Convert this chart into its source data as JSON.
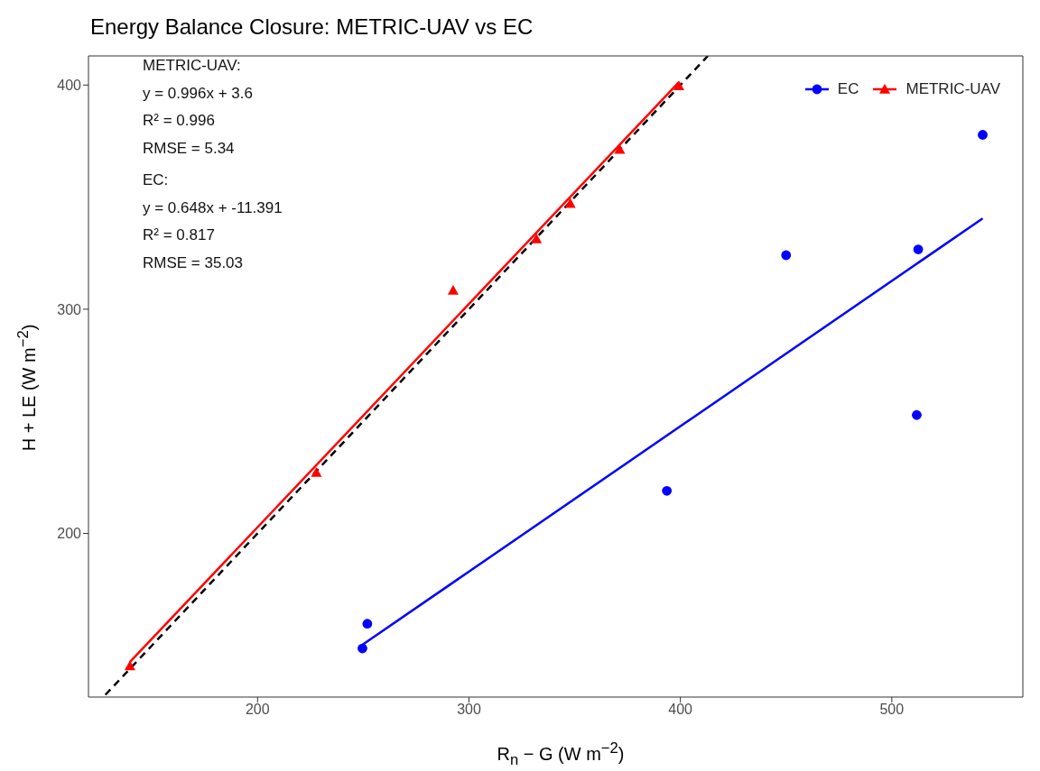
{
  "chart_data": {
    "type": "scatter",
    "title": "Energy Balance Closure: METRIC-UAV vs EC",
    "xlabel": "R$_{n}$ − G (W m$^{−2}$)",
    "ylabel": "H + LE (W m$^{−2}$)",
    "xlim": [
      120,
      562
    ],
    "ylim": [
      127,
      413
    ],
    "xticks": [
      200,
      300,
      400,
      500
    ],
    "yticks": [
      200,
      300,
      400
    ],
    "grid": false,
    "legend": "top right",
    "annotations": [
      "METRIC-UAV:",
      "y = 0.996x + 3.6",
      "R² = 0.996",
      "RMSE = 5.34",
      "EC:",
      "y = 0.648x + -11.391",
      "R² = 0.817",
      "RMSE = 35.03"
    ],
    "series": [
      {
        "name": "EC",
        "type": "scatter",
        "marker": "circle",
        "color": "#0000ff",
        "x": [
          249.6,
          251.9,
          393.6,
          450,
          511.8,
          512.5,
          543
        ],
        "values": [
          148.7,
          159.7,
          219,
          324.1,
          252.8,
          326.7,
          377.8
        ]
      },
      {
        "name": "METRIC-UAV",
        "type": "scatter",
        "marker": "triangle",
        "color": "#ff0000",
        "x": [
          139.6,
          227.8,
          292.5,
          331.9,
          347.9,
          371.3,
          399.3
        ],
        "values": [
          140.9,
          227.2,
          308.4,
          331.4,
          347.2,
          371.3,
          399.6
        ]
      },
      {
        "type": "line",
        "color": "#0000ff",
        "line_style": "solid",
        "x": [
          249.6,
          543
        ],
        "values": [
          150.3,
          340.5
        ]
      },
      {
        "type": "line",
        "color": "#ff0000",
        "line_style": "solid",
        "x": [
          139.6,
          399.3
        ],
        "values": [
          142.6,
          401.3
        ]
      },
      {
        "type": "line",
        "color": "#000000",
        "line_style": "dashed",
        "x": [
          128,
          413
        ],
        "values": [
          128,
          413
        ]
      }
    ]
  }
}
